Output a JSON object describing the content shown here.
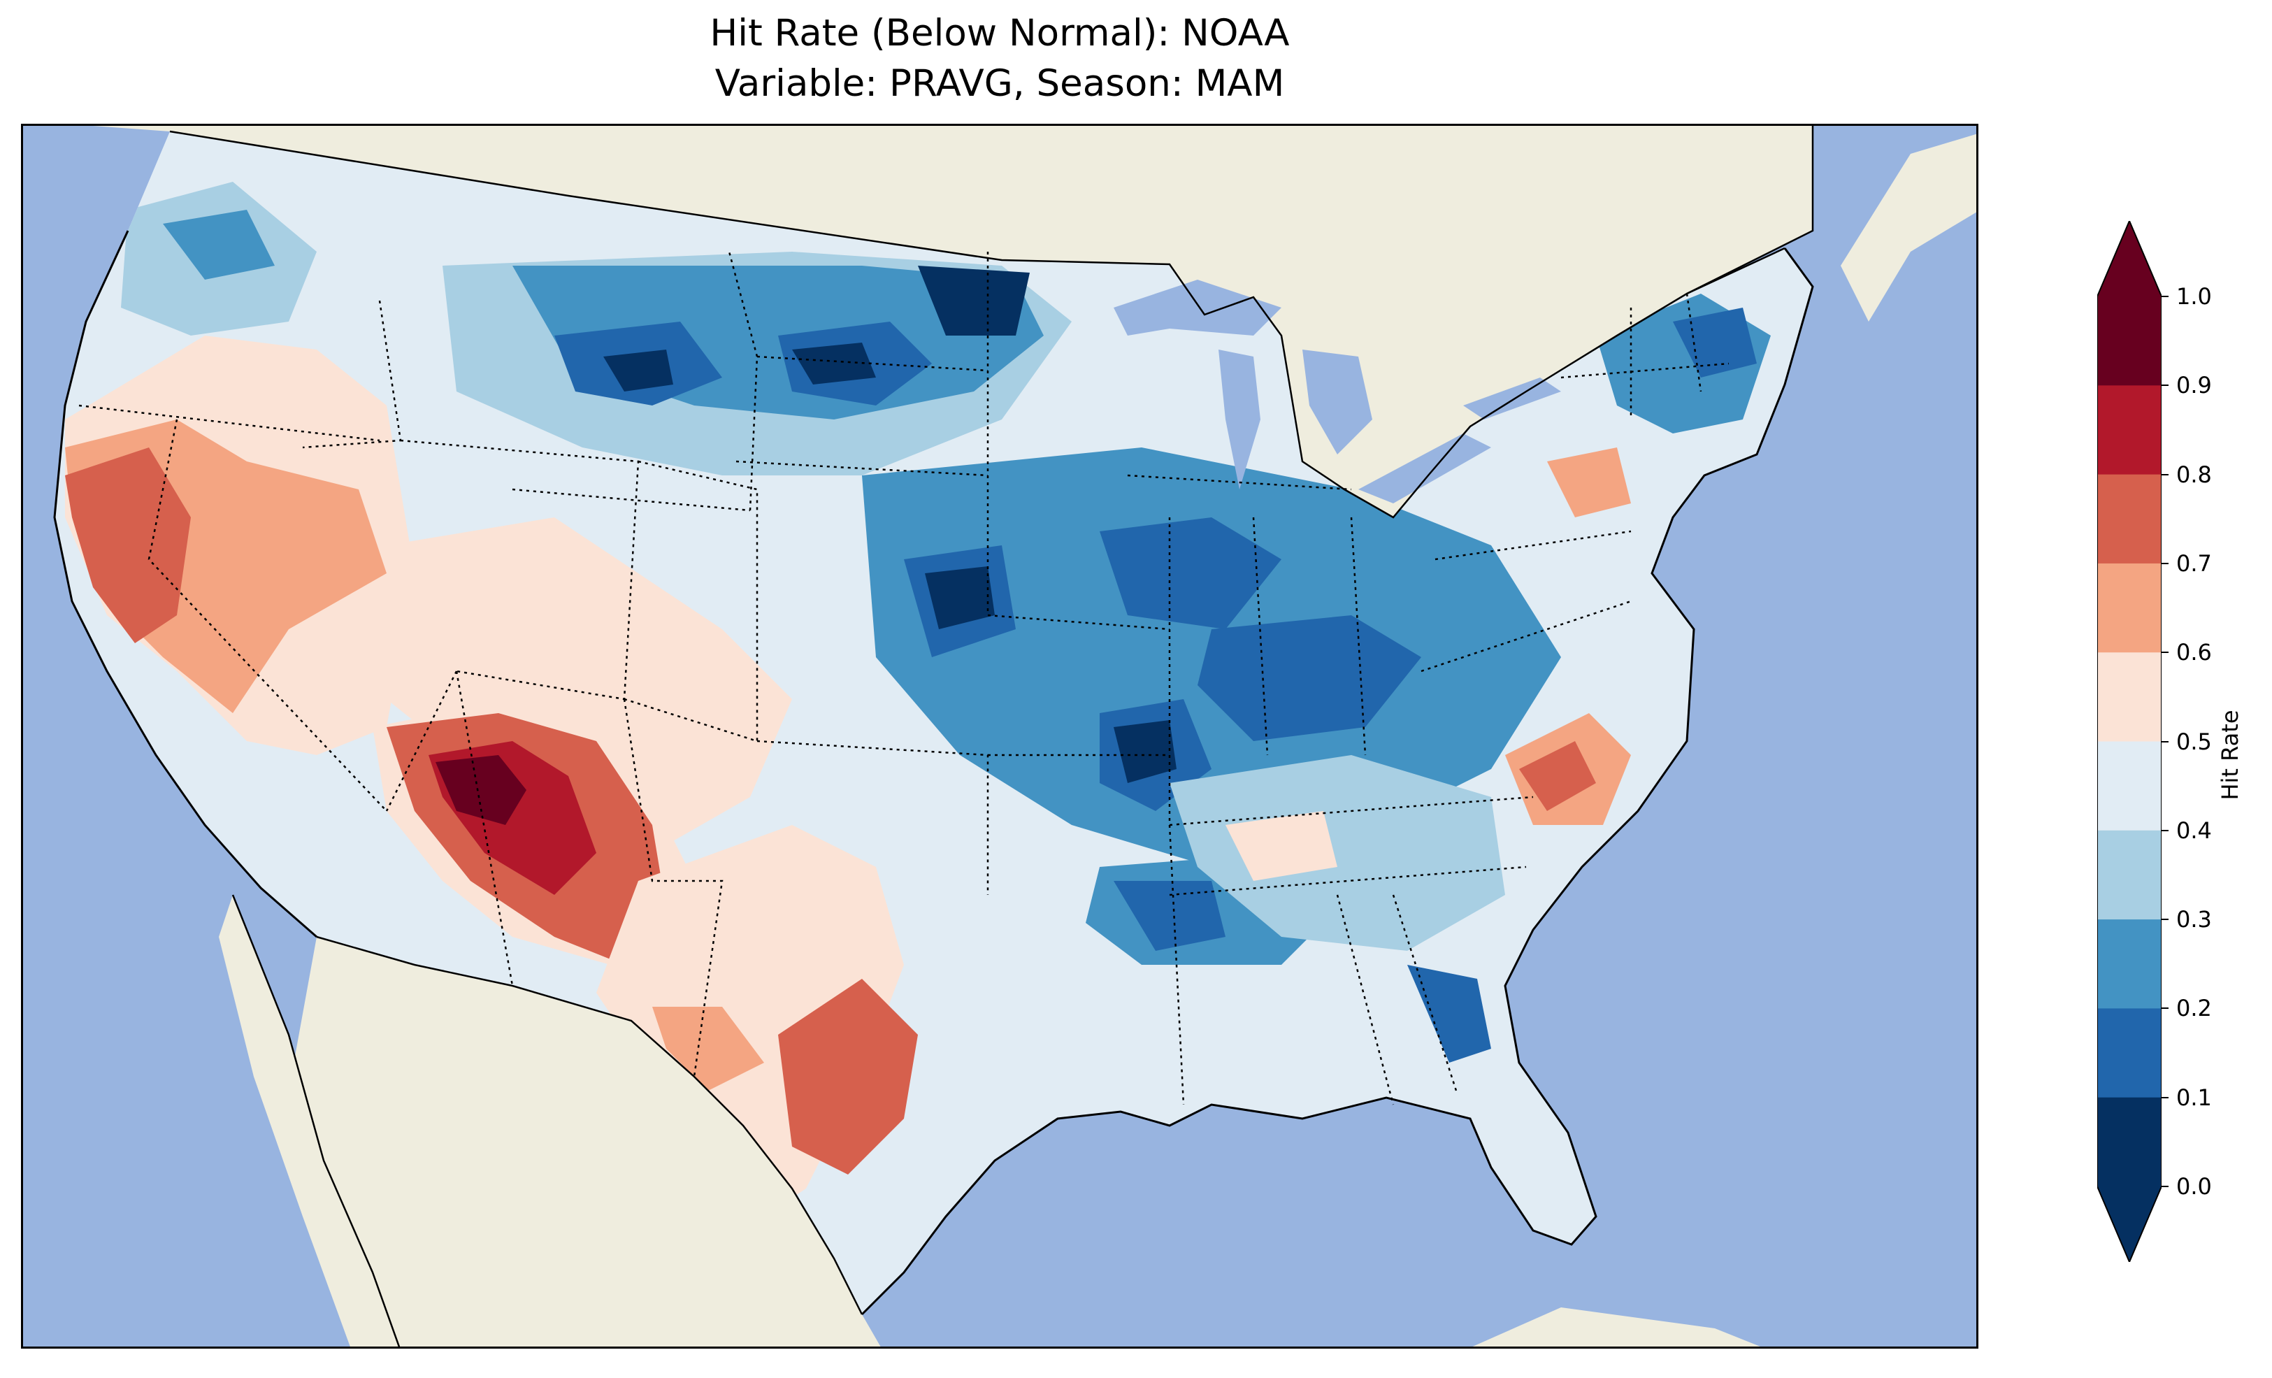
{
  "title": {
    "line1": "Hit Rate (Below Normal): NOAA",
    "line2": "Variable: PRAVG, Season: MAM"
  },
  "map": {
    "region": "Contiguous United States",
    "ocean_color": "#98b4e0",
    "land_color": "#efedde",
    "lake_color": "#98b4e0",
    "features": [
      "coastlines",
      "state-borders",
      "country-borders",
      "great-lakes"
    ],
    "field_description": "gridded hit-rate values, 0.0–1.0, colored by discrete bins",
    "notable_regions": [
      {
        "name": "Arizona / New Mexico border",
        "approx_value": 0.9
      },
      {
        "name": "California Central Valley",
        "approx_value": 0.75
      },
      {
        "name": "South Texas",
        "approx_value": 0.7
      },
      {
        "name": "Eastern North Carolina",
        "approx_value": 0.7
      },
      {
        "name": "Central Pennsylvania",
        "approx_value": 0.65
      },
      {
        "name": "North Dakota / Minnesota",
        "approx_value": 0.05
      },
      {
        "name": "South Dakota / Wyoming",
        "approx_value": 0.05
      },
      {
        "name": "Kansas / Missouri",
        "approx_value": 0.05
      },
      {
        "name": "Arkansas / Tennessee",
        "approx_value": 0.1
      },
      {
        "name": "Mississippi / Alabama",
        "approx_value": 0.1
      },
      {
        "name": "Florida Panhandle",
        "approx_value": 0.1
      },
      {
        "name": "Ohio Valley",
        "approx_value": 0.15
      }
    ]
  },
  "colorbar": {
    "label": "Hit Rate",
    "ticks": [
      "1.0",
      "0.9",
      "0.8",
      "0.7",
      "0.6",
      "0.5",
      "0.4",
      "0.3",
      "0.2",
      "0.1",
      "0.0"
    ],
    "bins": [
      {
        "range": "0.9–1.0",
        "color": "#67001f"
      },
      {
        "range": "0.8–0.9",
        "color": "#b2182b"
      },
      {
        "range": "0.7–0.8",
        "color": "#d6604d"
      },
      {
        "range": "0.6–0.7",
        "color": "#f4a582"
      },
      {
        "range": "0.5–0.6",
        "color": "#fbe3d6"
      },
      {
        "range": "0.4–0.5",
        "color": "#e1ecf4"
      },
      {
        "range": "0.3–0.4",
        "color": "#a8cfe3"
      },
      {
        "range": "0.2–0.3",
        "color": "#4393c3"
      },
      {
        "range": "0.1–0.2",
        "color": "#2166ac"
      },
      {
        "range": "0.0–0.1",
        "color": "#053061"
      }
    ],
    "extend": "both"
  }
}
